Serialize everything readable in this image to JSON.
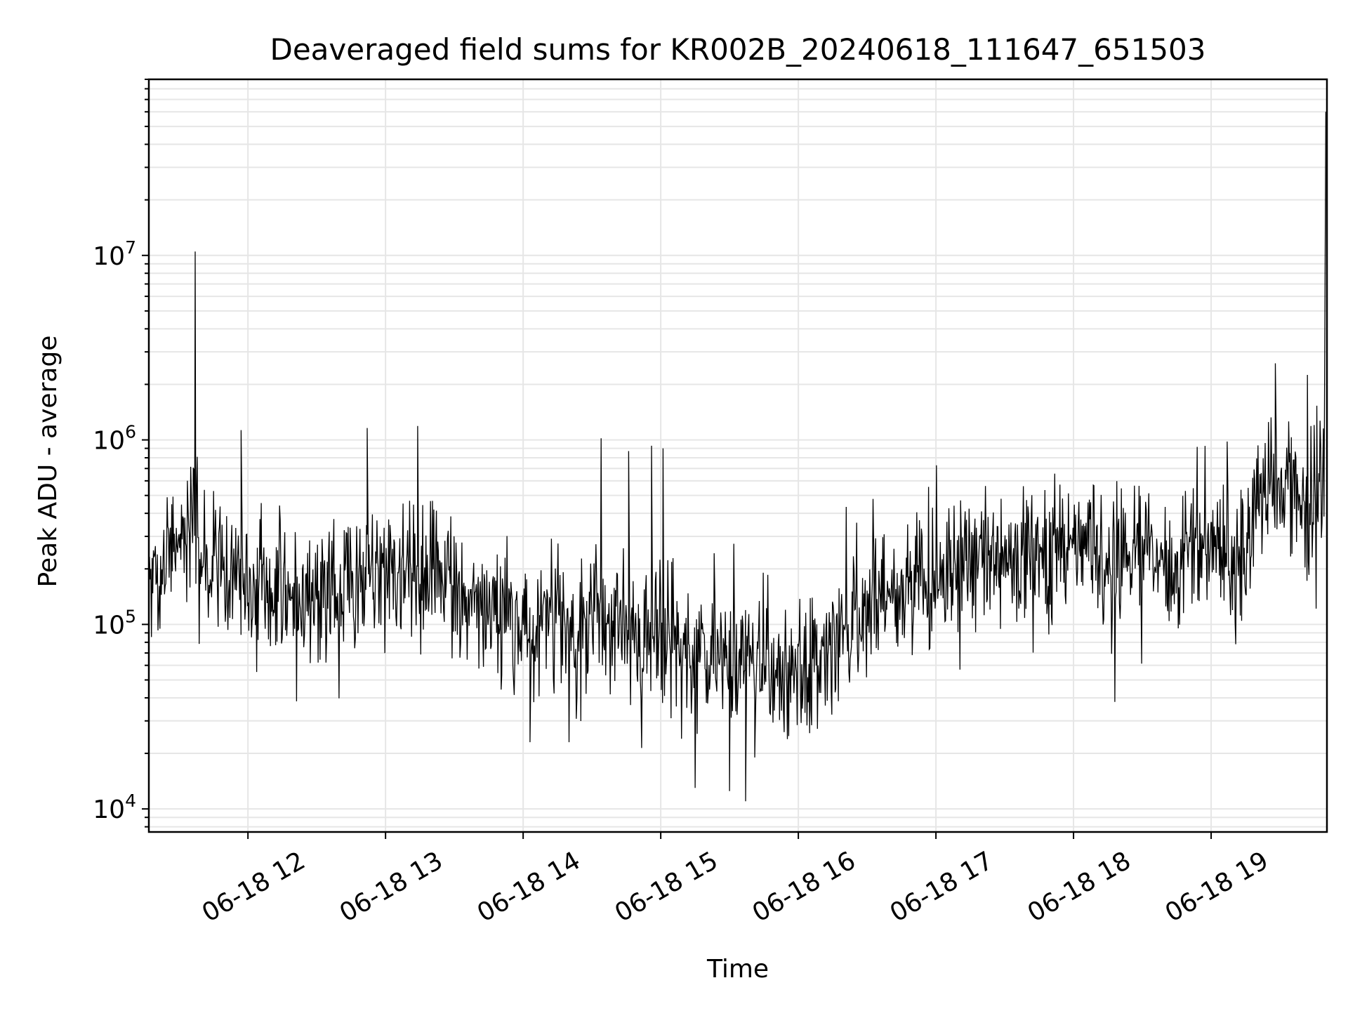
{
  "chart_data": {
    "type": "line",
    "title": "Deaveraged field sums for KR002B_20240618_111647_651503",
    "xlabel": "Time",
    "ylabel": "Peak ADU - average",
    "yscale": "log",
    "ylim": [
      7500,
      90000000
    ],
    "xlim": [
      "2024-06-18T11:16:47",
      "2024-06-18T19:50:30"
    ],
    "x_ticks": [
      {
        "value": "2024-06-18T12:00",
        "label": "06-18 12"
      },
      {
        "value": "2024-06-18T13:00",
        "label": "06-18 13"
      },
      {
        "value": "2024-06-18T14:00",
        "label": "06-18 14"
      },
      {
        "value": "2024-06-18T15:00",
        "label": "06-18 15"
      },
      {
        "value": "2024-06-18T16:00",
        "label": "06-18 16"
      },
      {
        "value": "2024-06-18T17:00",
        "label": "06-18 17"
      },
      {
        "value": "2024-06-18T18:00",
        "label": "06-18 18"
      },
      {
        "value": "2024-06-18T19:00",
        "label": "06-18 19"
      }
    ],
    "y_ticks": [
      {
        "value": 10000,
        "base": "10",
        "exp": "4"
      },
      {
        "value": 100000,
        "base": "10",
        "exp": "5"
      },
      {
        "value": 1000000,
        "base": "10",
        "exp": "6"
      },
      {
        "value": 10000000,
        "base": "10",
        "exp": "7"
      }
    ],
    "grid": true,
    "series": [
      {
        "color": "#000000",
        "x": [
          "2024-06-18T11:17",
          "2024-06-18T11:20",
          "2024-06-18T11:25",
          "2024-06-18T11:30",
          "2024-06-18T11:35",
          "2024-06-18T11:40",
          "2024-06-18T11:45",
          "2024-06-18T11:50",
          "2024-06-18T11:55",
          "2024-06-18T12:00",
          "2024-06-18T12:10",
          "2024-06-18T12:20",
          "2024-06-18T12:30",
          "2024-06-18T12:40",
          "2024-06-18T12:50",
          "2024-06-18T13:00",
          "2024-06-18T13:10",
          "2024-06-18T13:20",
          "2024-06-18T13:30",
          "2024-06-18T13:40",
          "2024-06-18T13:50",
          "2024-06-18T14:00",
          "2024-06-18T14:10",
          "2024-06-18T14:20",
          "2024-06-18T14:30",
          "2024-06-18T14:40",
          "2024-06-18T14:50",
          "2024-06-18T15:00",
          "2024-06-18T15:10",
          "2024-06-18T15:20",
          "2024-06-18T15:30",
          "2024-06-18T15:40",
          "2024-06-18T15:50",
          "2024-06-18T16:00",
          "2024-06-18T16:10",
          "2024-06-18T16:20",
          "2024-06-18T16:30",
          "2024-06-18T16:40",
          "2024-06-18T16:50",
          "2024-06-18T17:00",
          "2024-06-18T17:10",
          "2024-06-18T17:20",
          "2024-06-18T17:30",
          "2024-06-18T17:40",
          "2024-06-18T17:50",
          "2024-06-18T18:00",
          "2024-06-18T18:10",
          "2024-06-18T18:20",
          "2024-06-18T18:30",
          "2024-06-18T18:40",
          "2024-06-18T18:50",
          "2024-06-18T19:00",
          "2024-06-18T19:10",
          "2024-06-18T19:15",
          "2024-06-18T19:20",
          "2024-06-18T19:30",
          "2024-06-18T19:40",
          "2024-06-18T19:48",
          "2024-06-18T19:50"
        ],
        "y": [
          200000,
          180000,
          300000,
          250000,
          400000,
          220000,
          200000,
          180000,
          170000,
          160000,
          150000,
          140000,
          150000,
          140000,
          170000,
          180000,
          200000,
          180000,
          160000,
          140000,
          120000,
          110000,
          100000,
          100000,
          110000,
          100000,
          90000,
          80000,
          75000,
          70000,
          60000,
          60000,
          55000,
          60000,
          70000,
          90000,
          130000,
          150000,
          160000,
          180000,
          200000,
          230000,
          250000,
          240000,
          230000,
          250000,
          240000,
          230000,
          240000,
          230000,
          220000,
          230000,
          220000,
          230000,
          450000,
          500000,
          520000,
          550000,
          600000
        ]
      }
    ],
    "spikes": [
      {
        "x": "2024-06-18T11:37",
        "y": 10500000
      },
      {
        "x": "2024-06-18T11:57",
        "y": 1130000
      },
      {
        "x": "2024-06-18T12:52",
        "y": 1160000
      },
      {
        "x": "2024-06-18T13:14",
        "y": 1190000
      },
      {
        "x": "2024-06-18T14:34",
        "y": 1020000
      },
      {
        "x": "2024-06-18T14:46",
        "y": 870000
      },
      {
        "x": "2024-06-18T14:56",
        "y": 930000
      },
      {
        "x": "2024-06-18T15:01",
        "y": 900000
      },
      {
        "x": "2024-06-18T19:07",
        "y": 980000
      },
      {
        "x": "2024-06-18T19:28",
        "y": 2600000
      },
      {
        "x": "2024-06-18T19:42",
        "y": 2250000
      },
      {
        "x": "2024-06-18T19:50",
        "y": 60000000
      }
    ],
    "dips": [
      {
        "x": "2024-06-18T15:15",
        "y": 13000
      },
      {
        "x": "2024-06-18T15:30",
        "y": 12500
      },
      {
        "x": "2024-06-18T15:37",
        "y": 11000
      },
      {
        "x": "2024-06-18T15:41",
        "y": 19000
      },
      {
        "x": "2024-06-18T14:03",
        "y": 23000
      },
      {
        "x": "2024-06-18T14:20",
        "y": 23000
      },
      {
        "x": "2024-06-18T18:18",
        "y": 38000
      }
    ]
  }
}
